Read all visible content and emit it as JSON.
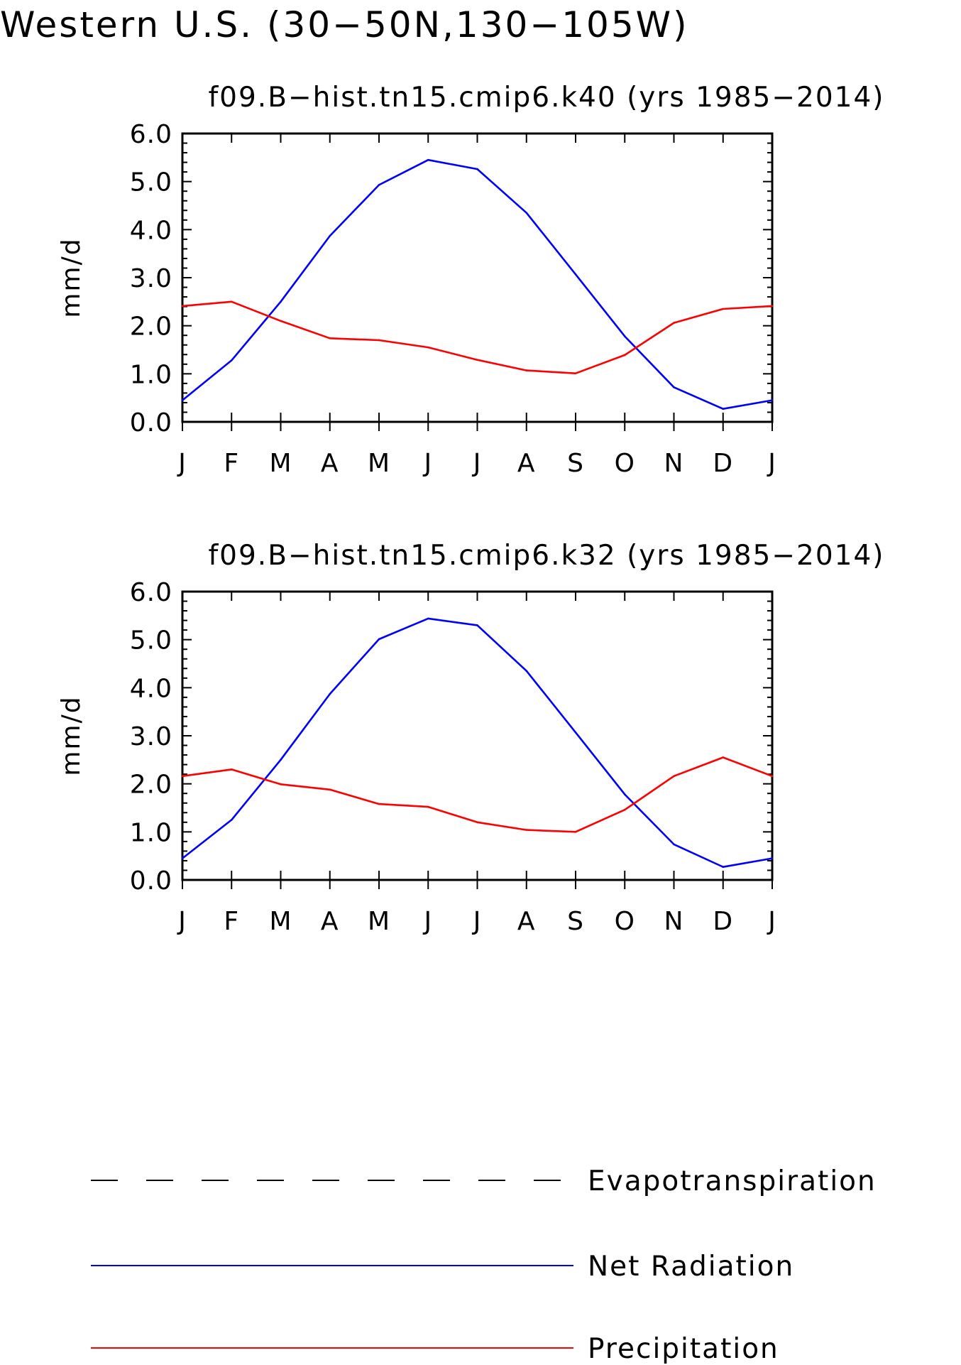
{
  "title": "Western U.S. (30−50N,130−105W)",
  "colors": {
    "net_radiation": "#0000ff",
    "precipitation": "#ff0000",
    "evapotranspiration": "#000000"
  },
  "legend": [
    {
      "name": "Evapotranspiration",
      "style": "dashed",
      "color": "#000000"
    },
    {
      "name": "Net Radiation",
      "style": "solid",
      "color": "#0000ff"
    },
    {
      "name": "Precipitation",
      "style": "solid",
      "color": "#ff0000"
    }
  ],
  "chart_data": [
    {
      "type": "line",
      "title": "f09.B−hist.tn15.cmip6.k40 (yrs 1985−2014)",
      "xlabel": "",
      "ylabel": "mm/d",
      "categories": [
        "J",
        "F",
        "M",
        "A",
        "M",
        "J",
        "J",
        "A",
        "S",
        "O",
        "N",
        "D",
        "J"
      ],
      "yticks": [
        "0.0",
        "1.0",
        "2.0",
        "3.0",
        "4.0",
        "5.0",
        "6.0"
      ],
      "ylim": [
        0,
        6
      ],
      "grid": false,
      "series": [
        {
          "name": "Net Radiation",
          "color": "#0000ff",
          "values": [
            0.45,
            1.28,
            2.5,
            3.87,
            4.93,
            5.45,
            5.26,
            4.35,
            3.07,
            1.78,
            0.72,
            0.27,
            0.45
          ]
        },
        {
          "name": "Precipitation",
          "color": "#ff0000",
          "values": [
            2.41,
            2.5,
            2.1,
            1.74,
            1.7,
            1.55,
            1.29,
            1.07,
            1.01,
            1.39,
            2.06,
            2.35,
            2.41
          ]
        }
      ]
    },
    {
      "type": "line",
      "title": "f09.B−hist.tn15.cmip6.k32 (yrs 1985−2014)",
      "xlabel": "",
      "ylabel": "mm/d",
      "categories": [
        "J",
        "F",
        "M",
        "A",
        "M",
        "J",
        "J",
        "A",
        "S",
        "O",
        "N",
        "D",
        "J"
      ],
      "yticks": [
        "0.0",
        "1.0",
        "2.0",
        "3.0",
        "4.0",
        "5.0",
        "6.0"
      ],
      "ylim": [
        0,
        6
      ],
      "grid": false,
      "series": [
        {
          "name": "Net Radiation",
          "color": "#0000ff",
          "values": [
            0.45,
            1.25,
            2.5,
            3.87,
            5.01,
            5.44,
            5.3,
            4.35,
            3.07,
            1.78,
            0.74,
            0.27,
            0.45
          ]
        },
        {
          "name": "Precipitation",
          "color": "#ff0000",
          "values": [
            2.16,
            2.3,
            1.99,
            1.88,
            1.58,
            1.52,
            1.2,
            1.04,
            1.0,
            1.46,
            2.16,
            2.55,
            2.16
          ]
        }
      ]
    }
  ]
}
